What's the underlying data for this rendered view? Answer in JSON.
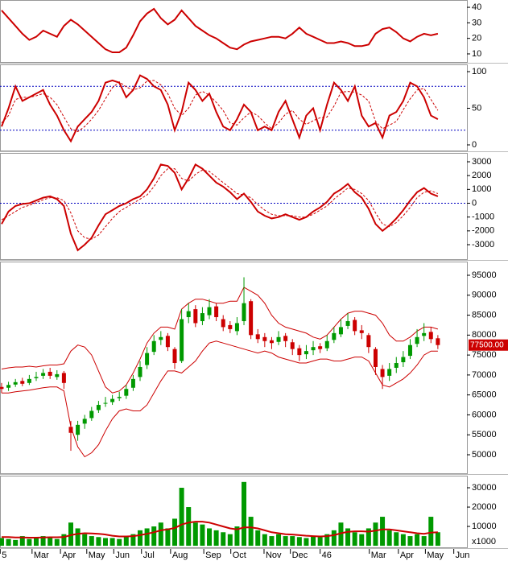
{
  "chart_data": [
    {
      "type": "line",
      "ylim": [
        4.8,
        44.7
      ],
      "yticks": [
        10,
        20,
        30,
        40
      ],
      "series": [
        {
          "color": "#cc0000",
          "style": "solid",
          "values": [
            38,
            33,
            28,
            23,
            19,
            21,
            25,
            23,
            21,
            28,
            32,
            29,
            25,
            21,
            17,
            13,
            11,
            11,
            14,
            22,
            31,
            36,
            39,
            33,
            29,
            32,
            38,
            33,
            28,
            25,
            22,
            20,
            17,
            14,
            13,
            16,
            18,
            19,
            20,
            21,
            21,
            20,
            23,
            27,
            23,
            21,
            19,
            17,
            17,
            18,
            17,
            15,
            15,
            16,
            23,
            26,
            27,
            24,
            20,
            18,
            21,
            23,
            22,
            23
          ]
        }
      ]
    },
    {
      "type": "line",
      "ylim": [
        -7.7,
        109.9
      ],
      "yticks": [
        0,
        50,
        100
      ],
      "levels": [
        80,
        20
      ],
      "level_color": "#0000c0",
      "series": [
        {
          "color": "#cc0000",
          "style": "solid",
          "values": [
            25,
            50,
            80,
            60,
            65,
            70,
            75,
            55,
            40,
            20,
            5,
            25,
            35,
            45,
            60,
            85,
            88,
            85,
            65,
            75,
            95,
            90,
            80,
            75,
            55,
            20,
            45,
            85,
            75,
            60,
            70,
            45,
            25,
            20,
            35,
            55,
            45,
            20,
            25,
            20,
            45,
            60,
            35,
            10,
            40,
            50,
            20,
            55,
            85,
            75,
            60,
            80,
            40,
            25,
            30,
            10,
            40,
            45,
            60,
            85,
            80,
            65,
            40,
            35
          ]
        },
        {
          "color": "#cc0000",
          "style": "dashed",
          "values": [
            30,
            40,
            62,
            65,
            65,
            67,
            70,
            65,
            55,
            38,
            22,
            18,
            25,
            35,
            47,
            63,
            78,
            86,
            79,
            75,
            78,
            87,
            88,
            82,
            70,
            50,
            40,
            50,
            68,
            73,
            68,
            58,
            47,
            30,
            27,
            37,
            45,
            40,
            30,
            22,
            30,
            42,
            47,
            35,
            28,
            33,
            37,
            38,
            53,
            72,
            73,
            72,
            68,
            60,
            32,
            22,
            27,
            32,
            48,
            63,
            75,
            77,
            62,
            47
          ]
        }
      ]
    },
    {
      "type": "line",
      "ylim": [
        -4048,
        3641
      ],
      "yticks": [
        -3000,
        -2000,
        -1000,
        0,
        1000,
        2000,
        3000
      ],
      "levels": [
        0
      ],
      "level_color": "#0000c0",
      "series": [
        {
          "color": "#cc0000",
          "style": "solid",
          "values": [
            -1500,
            -600,
            -200,
            -50,
            0,
            200,
            400,
            500,
            300,
            -200,
            -2200,
            -3400,
            -3000,
            -2500,
            -1600,
            -800,
            -500,
            -200,
            0,
            300,
            500,
            1000,
            1800,
            2800,
            2700,
            2200,
            1000,
            1800,
            2800,
            2500,
            2000,
            1500,
            1200,
            800,
            300,
            700,
            100,
            -600,
            -900,
            -1100,
            -1000,
            -800,
            -1000,
            -1200,
            -1000,
            -600,
            -300,
            100,
            700,
            1000,
            1400,
            800,
            400,
            -400,
            -1500,
            -2000,
            -1600,
            -1100,
            -500,
            200,
            800,
            1100,
            700,
            500
          ]
        },
        {
          "color": "#cc0000",
          "style": "dashed",
          "values": [
            -1200,
            -900,
            -600,
            -300,
            -150,
            50,
            250,
            400,
            400,
            200,
            -700,
            -2000,
            -2500,
            -2600,
            -2300,
            -1700,
            -1100,
            -600,
            -300,
            0,
            300,
            600,
            1200,
            2000,
            2500,
            2500,
            1800,
            1600,
            2100,
            2400,
            2300,
            1900,
            1500,
            1100,
            700,
            600,
            400,
            -100,
            -500,
            -800,
            -900,
            -900,
            -900,
            -1000,
            -1000,
            -800,
            -500,
            -200,
            300,
            700,
            1100,
            1000,
            700,
            200,
            -700,
            -1500,
            -1700,
            -1400,
            -900,
            -300,
            400,
            800,
            900,
            700
          ]
        }
      ]
    },
    {
      "type": "candlestick",
      "ylim": [
        45360,
        98430
      ],
      "yticks": [
        50000,
        55000,
        60000,
        65000,
        70000,
        75000,
        80000,
        85000,
        90000,
        95000
      ],
      "up_color": "#009900",
      "down_color": "#cc0000",
      "open": [
        67000,
        66800,
        67600,
        68500,
        68000,
        69200,
        69800,
        70800,
        69500,
        70500,
        57000,
        55000,
        57800,
        59200,
        61200,
        62800,
        63200,
        64200,
        64800,
        66800,
        69500,
        72500,
        75800,
        78800,
        79800,
        76500,
        73500,
        84500,
        86500,
        83500,
        85000,
        87200,
        84000,
        82500,
        81000,
        83500,
        88500,
        80200,
        79500,
        78700,
        78300,
        79800,
        78200,
        76700,
        75200,
        76200,
        77200,
        76700,
        78800,
        80200,
        82300,
        83800,
        81200,
        80000,
        76500,
        71500,
        69800,
        71800,
        73200,
        74800,
        77800,
        79800,
        80800,
        79200
      ],
      "high": [
        68000,
        68300,
        69000,
        69300,
        70000,
        70800,
        71500,
        71800,
        71200,
        71000,
        58500,
        58500,
        60000,
        62000,
        63500,
        64500,
        65000,
        65800,
        67500,
        70000,
        73500,
        77000,
        80000,
        81000,
        80500,
        77000,
        86500,
        88000,
        87500,
        87000,
        89000,
        88000,
        85000,
        83500,
        84500,
        94500,
        89000,
        81500,
        80500,
        79500,
        81000,
        80500,
        79000,
        77500,
        77500,
        78500,
        78000,
        80000,
        82000,
        84000,
        85500,
        84500,
        82500,
        80500,
        77000,
        72500,
        73000,
        74500,
        76000,
        79000,
        81500,
        83000,
        82000,
        80000
      ],
      "low": [
        65500,
        66000,
        67000,
        67200,
        67500,
        68500,
        69000,
        69000,
        68800,
        66500,
        51000,
        53500,
        56500,
        58500,
        60500,
        62000,
        62500,
        63500,
        64000,
        66000,
        68500,
        71500,
        75000,
        77500,
        76000,
        71500,
        73000,
        83000,
        82000,
        82500,
        84000,
        83500,
        81000,
        80500,
        80000,
        82500,
        79000,
        78000,
        77000,
        76500,
        77500,
        77000,
        75000,
        73500,
        74000,
        75000,
        75500,
        76000,
        78000,
        79500,
        81500,
        80000,
        79000,
        75500,
        70000,
        66500,
        68500,
        70500,
        72000,
        74000,
        77000,
        78500,
        78000,
        76500
      ],
      "close": [
        66500,
        67500,
        68200,
        67800,
        69000,
        69500,
        70500,
        69800,
        70200,
        68000,
        55500,
        57500,
        59000,
        61000,
        62500,
        63000,
        64000,
        64500,
        66500,
        69000,
        72000,
        75500,
        78500,
        79500,
        77000,
        73000,
        84000,
        86000,
        83000,
        85500,
        87000,
        84500,
        82000,
        81500,
        83000,
        88000,
        80000,
        79000,
        78500,
        78000,
        79500,
        78500,
        76500,
        75000,
        76000,
        77000,
        76500,
        78500,
        80500,
        82000,
        83500,
        81000,
        80500,
        77000,
        72000,
        69500,
        71500,
        73000,
        74500,
        77500,
        79500,
        80500,
        79000,
        77500
      ],
      "overlays": [
        {
          "color": "#cc0000",
          "values": [
            71500,
            71800,
            72000,
            72000,
            72200,
            72000,
            72300,
            72500,
            72500,
            72800,
            76000,
            77500,
            77000,
            75000,
            71000,
            67000,
            65500,
            66000,
            67500,
            70500,
            74000,
            78000,
            80500,
            82000,
            82000,
            81500,
            86500,
            88000,
            89000,
            89000,
            88500,
            88000,
            88000,
            88500,
            88500,
            92000,
            91000,
            90000,
            88000,
            85000,
            83000,
            82000,
            81500,
            81000,
            80500,
            79500,
            79000,
            80000,
            82000,
            84000,
            85500,
            86000,
            86000,
            85500,
            85000,
            83000,
            80000,
            78500,
            78500,
            79500,
            81000,
            82000,
            82000,
            81500
          ]
        },
        {
          "color": "#cc0000",
          "values": [
            65500,
            65500,
            65800,
            66000,
            66200,
            66500,
            66800,
            67000,
            67000,
            66000,
            57000,
            52000,
            49500,
            50500,
            52500,
            56000,
            59000,
            61000,
            61500,
            61000,
            61000,
            62500,
            65500,
            68500,
            71000,
            71000,
            70500,
            72000,
            73500,
            76000,
            78000,
            78500,
            78000,
            77500,
            77000,
            76500,
            76000,
            75500,
            76000,
            75500,
            74500,
            74000,
            73500,
            73000,
            73000,
            73500,
            74000,
            74000,
            73500,
            73500,
            74000,
            74500,
            74500,
            73500,
            70500,
            67500,
            67000,
            68000,
            69000,
            70500,
            72500,
            75000,
            76000,
            76000
          ]
        }
      ],
      "last_price": {
        "value": 77500,
        "label": "77500.00"
      },
      "last_color": "#cc0000"
    },
    {
      "type": "bar",
      "ylim": [
        -800,
        36250
      ],
      "yticks": [
        10000,
        20000,
        30000
      ],
      "unit_label": "x1000",
      "color": "#009900",
      "values": [
        4000,
        3500,
        3000,
        5000,
        3500,
        4000,
        5000,
        4500,
        3500,
        6000,
        12000,
        9000,
        6000,
        5000,
        4500,
        4000,
        4000,
        3500,
        5000,
        6000,
        8000,
        9000,
        10000,
        12000,
        9000,
        14000,
        30000,
        20000,
        12000,
        11000,
        9000,
        8000,
        7000,
        6000,
        10000,
        33000,
        15000,
        8000,
        6000,
        5000,
        6000,
        5000,
        5000,
        4500,
        4000,
        5000,
        4500,
        6000,
        8000,
        12000,
        9000,
        7000,
        6000,
        9000,
        12000,
        15000,
        8000,
        7000,
        6000,
        5000,
        6000,
        5000,
        15000,
        7000
      ],
      "ma": {
        "color": "#cc0000",
        "values": [
          4500,
          4500,
          4300,
          4300,
          4200,
          4200,
          4300,
          4400,
          4400,
          4500,
          5500,
          6200,
          6500,
          6400,
          6200,
          5800,
          5200,
          4800,
          4800,
          5000,
          5500,
          6200,
          7000,
          8000,
          8500,
          9200,
          11000,
          12000,
          12500,
          12500,
          12000,
          11000,
          10000,
          9000,
          8500,
          9500,
          9500,
          9000,
          8000,
          7000,
          6500,
          6000,
          5800,
          5500,
          5200,
          5000,
          4800,
          5000,
          5500,
          6500,
          7200,
          7500,
          7500,
          7300,
          7800,
          8500,
          8500,
          8000,
          7500,
          7000,
          6500,
          6200,
          6800,
          7000
        ]
      },
      "xlim": [
        -0.23,
        67.2
      ],
      "xticks": [
        {
          "value": -0.2,
          "label": "5"
        },
        {
          "value": 4.4,
          "label": "Mar"
        },
        {
          "value": 8.5,
          "label": "Apr"
        },
        {
          "value": 12.3,
          "label": "May"
        },
        {
          "value": 16.2,
          "label": "Jun"
        },
        {
          "value": 20.2,
          "label": "Jul"
        },
        {
          "value": 24.4,
          "label": "Aug"
        },
        {
          "value": 29.2,
          "label": "Sep"
        },
        {
          "value": 33.1,
          "label": "Oct"
        },
        {
          "value": 37.9,
          "label": "Nov"
        },
        {
          "value": 41.7,
          "label": "Dec"
        },
        46.0,
        {
          "value": 53.1,
          "label": "Mar"
        },
        {
          "value": 57.3,
          "label": "Apr"
        },
        {
          "value": 61.2,
          "label": "May"
        },
        {
          "value": 65.3,
          "label": "Jun"
        }
      ]
    }
  ]
}
